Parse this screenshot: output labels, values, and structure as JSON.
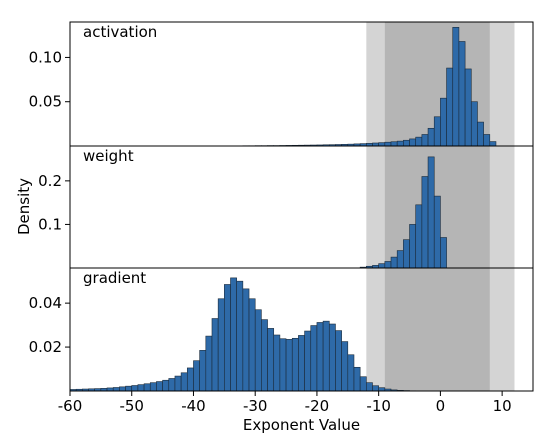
{
  "chart_data": {
    "type": "bar",
    "xlabel": "Exponent Value",
    "ylabel": "Density",
    "xlim": [
      -60,
      15
    ],
    "x_ticks": [
      -60,
      -50,
      -40,
      -30,
      -20,
      -10,
      0,
      10
    ],
    "bin_width": 1,
    "colors": {
      "bar_fill": "#2e6aa8",
      "bar_edge": "#1a2a3a",
      "outer_band": "#d4d4d4",
      "inner_band": "#b5b5b5",
      "frame": "#000000"
    },
    "shaded_ranges": [
      {
        "name": "outer",
        "x": [
          -12,
          12
        ]
      },
      {
        "name": "inner",
        "x": [
          -9,
          8
        ]
      }
    ],
    "panels": [
      {
        "label": "activation",
        "ylim": [
          0,
          0.14
        ],
        "y_ticks": [
          0.05,
          0.1
        ],
        "y_tick_labels": [
          "0.05",
          "0.10"
        ],
        "bins": [
          [
            -32,
            0.0003
          ],
          [
            -31,
            0.0003
          ],
          [
            -30,
            0.0004
          ],
          [
            -29,
            0.0004
          ],
          [
            -28,
            0.0005
          ],
          [
            -27,
            0.0005
          ],
          [
            -26,
            0.0006
          ],
          [
            -25,
            0.0007
          ],
          [
            -24,
            0.0008
          ],
          [
            -23,
            0.0009
          ],
          [
            -22,
            0.001
          ],
          [
            -21,
            0.0011
          ],
          [
            -20,
            0.0012
          ],
          [
            -19,
            0.0014
          ],
          [
            -18,
            0.0015
          ],
          [
            -17,
            0.0017
          ],
          [
            -16,
            0.0019
          ],
          [
            -15,
            0.0021
          ],
          [
            -14,
            0.0024
          ],
          [
            -13,
            0.0027
          ],
          [
            -12,
            0.003
          ],
          [
            -11,
            0.0034
          ],
          [
            -10,
            0.0038
          ],
          [
            -9,
            0.0043
          ],
          [
            -8,
            0.0048
          ],
          [
            -7,
            0.0055
          ],
          [
            -6,
            0.0065
          ],
          [
            -5,
            0.008
          ],
          [
            -4,
            0.01
          ],
          [
            -3,
            0.013
          ],
          [
            -2,
            0.02
          ],
          [
            -1,
            0.033
          ],
          [
            0,
            0.054
          ],
          [
            1,
            0.088
          ],
          [
            2,
            0.134
          ],
          [
            3,
            0.118
          ],
          [
            4,
            0.087
          ],
          [
            5,
            0.05
          ],
          [
            6,
            0.027
          ],
          [
            7,
            0.013
          ],
          [
            8,
            0.005
          ]
        ]
      },
      {
        "label": "weight",
        "ylim": [
          0,
          0.28
        ],
        "y_ticks": [
          0.1,
          0.2
        ],
        "y_tick_labels": [
          "0.1",
          "0.2"
        ],
        "bins": [
          [
            -13,
            0.002
          ],
          [
            -12,
            0.004
          ],
          [
            -11,
            0.006
          ],
          [
            -10,
            0.01
          ],
          [
            -9,
            0.015
          ],
          [
            -8,
            0.025
          ],
          [
            -7,
            0.04
          ],
          [
            -6,
            0.065
          ],
          [
            -5,
            0.1
          ],
          [
            -4,
            0.145
          ],
          [
            -3,
            0.21
          ],
          [
            -2,
            0.255
          ],
          [
            -1,
            0.165
          ],
          [
            0,
            0.07
          ]
        ]
      },
      {
        "label": "gradient",
        "ylim": [
          0,
          0.056
        ],
        "y_ticks": [
          0.02,
          0.04
        ],
        "y_tick_labels": [
          "0.02",
          "0.04"
        ],
        "bins": [
          [
            -60,
            0.0007
          ],
          [
            -59,
            0.0008
          ],
          [
            -58,
            0.0009
          ],
          [
            -57,
            0.001
          ],
          [
            -56,
            0.0011
          ],
          [
            -55,
            0.0012
          ],
          [
            -54,
            0.0014
          ],
          [
            -53,
            0.0016
          ],
          [
            -52,
            0.0019
          ],
          [
            -51,
            0.0022
          ],
          [
            -50,
            0.0025
          ],
          [
            -49,
            0.0029
          ],
          [
            -48,
            0.0033
          ],
          [
            -47,
            0.0038
          ],
          [
            -46,
            0.0043
          ],
          [
            -45,
            0.0049
          ],
          [
            -44,
            0.0057
          ],
          [
            -43,
            0.0068
          ],
          [
            -42,
            0.0083
          ],
          [
            -41,
            0.0105
          ],
          [
            -40,
            0.0138
          ],
          [
            -39,
            0.0185
          ],
          [
            -38,
            0.025
          ],
          [
            -37,
            0.033
          ],
          [
            -36,
            0.042
          ],
          [
            -35,
            0.0485
          ],
          [
            -34,
            0.0515
          ],
          [
            -33,
            0.05
          ],
          [
            -32,
            0.0465
          ],
          [
            -31,
            0.042
          ],
          [
            -30,
            0.037
          ],
          [
            -29,
            0.0325
          ],
          [
            -28,
            0.0285
          ],
          [
            -27,
            0.0255
          ],
          [
            -26,
            0.0238
          ],
          [
            -25,
            0.0235
          ],
          [
            -24,
            0.024
          ],
          [
            -23,
            0.0253
          ],
          [
            -22,
            0.0273
          ],
          [
            -21,
            0.0298
          ],
          [
            -20,
            0.0312
          ],
          [
            -19,
            0.0318
          ],
          [
            -18,
            0.0305
          ],
          [
            -17,
            0.0275
          ],
          [
            -16,
            0.0225
          ],
          [
            -15,
            0.0165
          ],
          [
            -14,
            0.0108
          ],
          [
            -13,
            0.0065
          ],
          [
            -12,
            0.0038
          ],
          [
            -11,
            0.0024
          ],
          [
            -10,
            0.0015
          ],
          [
            -9,
            0.0009
          ],
          [
            -8,
            0.0005
          ],
          [
            -7,
            0.0003
          ],
          [
            -6,
            0.0002
          ],
          [
            -5,
            0.0001
          ]
        ]
      }
    ]
  }
}
